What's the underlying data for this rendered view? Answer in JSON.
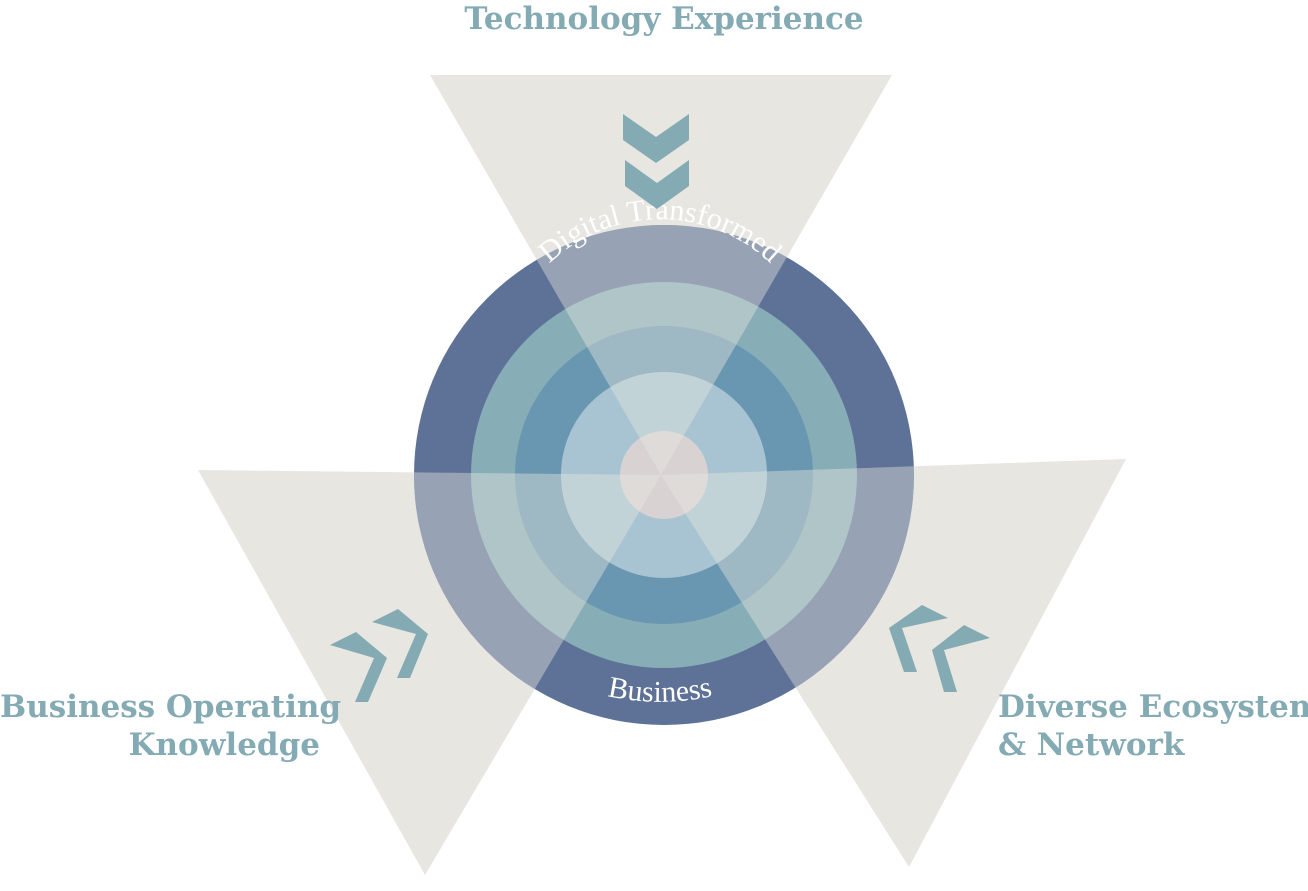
{
  "labels": {
    "top": "Technology Experience",
    "left_line1": "Business Operating",
    "left_line2": "Knowledge",
    "right_line1": "Diverse Ecosystem",
    "right_line2": "& Network"
  },
  "ring_labels": {
    "outer_top": "Digital Transformed",
    "outer_bottom": "Business"
  },
  "icons": {
    "top": "double-chevron-down-icon",
    "left": "double-chevron-right-icon",
    "right": "double-chevron-left-icon"
  },
  "colors": {
    "label_text": "#84aab4",
    "triangle_fill": "#e8e6e1",
    "chevron": "#84aab4",
    "ring_outer": "#5e7197",
    "ring_2": "#87adb6",
    "ring_3": "#6996b0",
    "ring_4": "#a8c4d3",
    "ring_center": "#d8d2d2",
    "ring_text": "#ffffff"
  }
}
